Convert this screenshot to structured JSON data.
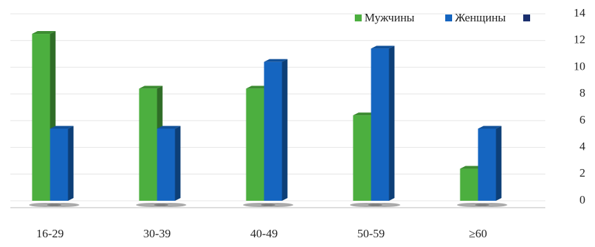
{
  "chart_data": {
    "type": "bar",
    "categories": [
      "16-29",
      "30-39",
      "40-49",
      "50-59",
      "≥60"
    ],
    "series": [
      {
        "name": "Мужчины",
        "color": "#4caf3f",
        "values": [
          12.5,
          8.4,
          8.4,
          6.4,
          2.4
        ]
      },
      {
        "name": "Женщины",
        "color": "#1565c0",
        "values": [
          5.4,
          5.4,
          10.4,
          11.4,
          5.4
        ]
      }
    ],
    "ylim": [
      0,
      14
    ],
    "yticks": [
      0,
      2,
      4,
      6,
      8,
      10,
      12,
      14
    ],
    "grid": true,
    "legend": "top-right"
  }
}
